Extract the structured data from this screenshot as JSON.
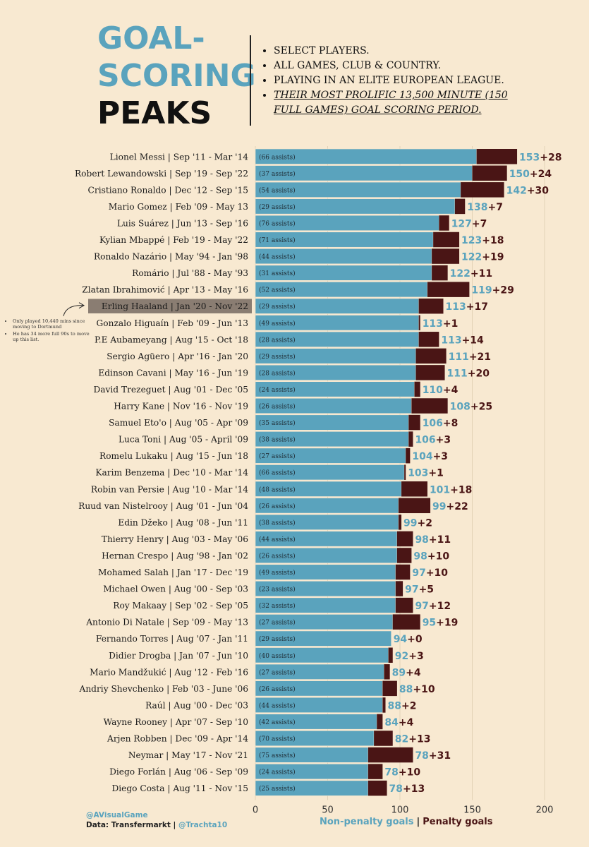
{
  "title": {
    "line1": "GOAL-",
    "line2": "SCORING",
    "line3": "PEAKS"
  },
  "criteria": [
    "SELECT PLAYERS.",
    "ALL GAMES, CLUB & COUNTRY.",
    "PLAYING IN AN ELITE EUROPEAN LEAGUE.",
    "THEIR MOST PROLIFIC 13,500 MINUTE (150 FULL GAMES) GOAL SCORING PERIOD."
  ],
  "note": [
    "Only played 10,440 mins since moving to Dortmund",
    "He has 34 more full 90s to move up this list."
  ],
  "credits": {
    "handle": "@AVisualGame",
    "source": "Data: Transfermarkt | ",
    "source_handle": "@Trachta10"
  },
  "legend": {
    "non_penalty": "Non-penalty goals",
    "separator": "|",
    "penalty": "Penalty goals"
  },
  "colors": {
    "non_penalty": "#5aa3bd",
    "penalty": "#4a1515",
    "highlight": "#8a7d72",
    "background": "#f8e9d1"
  },
  "chart_data": {
    "type": "bar",
    "orientation": "horizontal",
    "stacked": true,
    "xlim": [
      0,
      200
    ],
    "xticks": [
      0,
      50,
      100,
      150,
      200
    ],
    "grid": true,
    "highlight": "Erling Haaland",
    "categories": [
      "Lionel Messi  |  Sep '11 - Mar '14",
      "Robert Lewandowski  |  Sep '19 - Sep '22",
      "Cristiano Ronaldo  |  Dec '12 - Sep '15",
      "Mario Gomez  |  Feb '09 - May 13",
      "Luis Suárez  |  Jun '13 - Sep '16",
      "Kylian Mbappé  |  Feb '19 - May '22",
      "Ronaldo Nazário | May '94 - Jan '98",
      "Romário  |  Jul '88 - May '93",
      "Zlatan Ibrahimović  |  Apr '13 - May '16",
      "Erling Haaland  |  Jan '20 - Nov '22",
      "Gonzalo Higuaín  |  Feb '09 - Jun '13",
      "P.E Aubameyang  |  Aug '15 - Oct '18",
      "Sergio Agüero  |  Apr '16 - Jan '20",
      "Edinson Cavani  |  May '16 - Jun '19",
      "David Trezeguet  |  Aug '01 - Dec '05",
      "Harry Kane  |  Nov '16 - Nov '19",
      "Samuel Eto'o  |  Aug '05 - Apr '09",
      "Luca Toni  |  Aug '05 - April '09",
      "Romelu Lukaku  |  Aug '15 - Jun '18",
      "Karim Benzema  |  Dec '10 - Mar '14",
      "Robin van Persie  |  Aug '10 - Mar '14",
      "Ruud van Nistelrooy  |  Aug '01 - Jun '04",
      "Edin Džeko  |  Aug '08 - Jun '11",
      "Thierry Henry  |  Aug '03 - May '06",
      "Hernan Crespo  |  Aug  '98 - Jan '02",
      "Mohamed Salah  |  Jan '17 - Dec '19",
      "Michael Owen  |  Aug '00 - Sep '03",
      "Roy Makaay  |  Sep '02 - Sep '05",
      "Antonio Di Natale | Sep '09 - May '13",
      "Fernando Torres  |  Aug '07 - Jan '11",
      "Didier Drogba  |  Jan '07 - Jun '10",
      "Mario Mandžukić  |  Aug '12 - Feb '16",
      "Andriy Shevchenko  |  Feb '03 - June '06",
      "Raúl  |  Aug '00 - Dec '03",
      "Wayne Rooney  |  Apr '07 - Sep '10",
      "Arjen Robben  |  Dec '09 - Apr '14",
      "Neymar  |  May '17 - Nov '21",
      "Diego Forlán  |  Aug '06 - Sep '09",
      "Diego Costa  |  Aug '11 - Nov '15"
    ],
    "series": [
      {
        "name": "Non-penalty goals",
        "values": [
          153,
          150,
          142,
          138,
          127,
          123,
          122,
          122,
          119,
          113,
          113,
          113,
          111,
          111,
          110,
          108,
          106,
          106,
          104,
          103,
          101,
          99,
          99,
          98,
          98,
          97,
          97,
          97,
          95,
          94,
          92,
          89,
          88,
          88,
          84,
          82,
          78,
          78,
          78
        ]
      },
      {
        "name": "Penalty goals",
        "values": [
          28,
          24,
          30,
          7,
          7,
          18,
          19,
          11,
          29,
          17,
          1,
          14,
          21,
          20,
          4,
          25,
          8,
          3,
          3,
          1,
          18,
          22,
          2,
          11,
          10,
          10,
          5,
          12,
          19,
          0,
          3,
          4,
          10,
          2,
          4,
          13,
          31,
          10,
          13
        ]
      }
    ],
    "assists": [
      "(66 assists)",
      "(37 assists)",
      "(54 assists)",
      "(29 assists)",
      "(76 assists)",
      "(71 assists)",
      "(44 assists)",
      "(31 assists)",
      "(52 assists)",
      "(29 assists)",
      "(49 assists)",
      "(28 assists)",
      "(29 assists)",
      "(28 assists)",
      "(24 assists)",
      "(26 assists)",
      "(35 assists)",
      "(38 assists)",
      "(27 assists)",
      "(66 assists)",
      "(48 assists)",
      "(26 assists)",
      "(38 assists)",
      "(44 assists)",
      "(26 assists)",
      "(49 assists)",
      "(23 assists)",
      "(32 assists)",
      "(27 assists)",
      "(29 assists)",
      "(40 assists)",
      "(27 assists)",
      "(26 assists)",
      "(44 assists)",
      "(42 assists)",
      "(70 assists)",
      "(75 assists)",
      "(24 assists)",
      "(25 assists)"
    ]
  }
}
